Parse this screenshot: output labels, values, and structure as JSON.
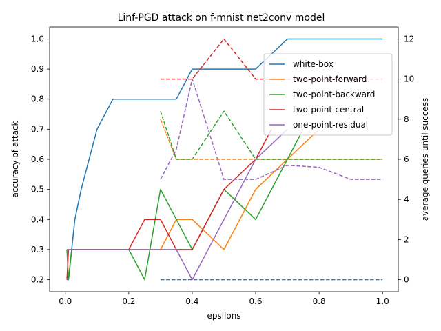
{
  "chart_data": {
    "type": "line",
    "title": "Linf-PGD attack on f-mnist net2conv model",
    "xlabel": "epsilons",
    "ylabel": "accuracy of attack",
    "ylabel_right": "average queries until success",
    "xlim": [
      -0.0495,
      1.0495
    ],
    "ylim": [
      0.16,
      1.04
    ],
    "ylim_right": [
      -0.6,
      12.6
    ],
    "x_ticks": [
      0.0,
      0.2,
      0.4,
      0.6,
      0.8,
      1.0
    ],
    "x_tick_labels": [
      "0.0",
      "0.2",
      "0.4",
      "0.6",
      "0.8",
      "1.0"
    ],
    "y_ticks": [
      0.2,
      0.3,
      0.4,
      0.5,
      0.6,
      0.7,
      0.8,
      0.9,
      1.0
    ],
    "y_tick_labels": [
      "0.2",
      "0.3",
      "0.4",
      "0.5",
      "0.6",
      "0.7",
      "0.8",
      "0.9",
      "1.0"
    ],
    "y_right_ticks": [
      0,
      2,
      4,
      6,
      8,
      10,
      12
    ],
    "y_right_tick_labels": [
      "0",
      "2",
      "4",
      "6",
      "8",
      "10",
      "12"
    ],
    "grid": false,
    "legend_position": "upper-right",
    "series": [
      {
        "name": "white-box",
        "color": "#1f77b4",
        "axis": "left",
        "style": "solid",
        "x": [
          0.005,
          0.01,
          0.02,
          0.03,
          0.05,
          0.1,
          0.15,
          0.2,
          0.25,
          0.3,
          0.35,
          0.4,
          0.5,
          0.6,
          0.7,
          0.8,
          0.9,
          1.0
        ],
        "y": [
          0.2,
          0.2,
          0.3,
          0.4,
          0.5,
          0.7,
          0.8,
          0.8,
          0.8,
          0.8,
          0.8,
          0.9,
          0.9,
          0.9,
          1.0,
          1.0,
          1.0,
          1.0
        ]
      },
      {
        "name": "two-point-forward",
        "color": "#ff7f0e",
        "axis": "left",
        "style": "solid",
        "x": [
          0.005,
          0.01,
          0.2,
          0.3,
          0.35,
          0.4,
          0.5,
          0.6,
          0.7,
          0.8
        ],
        "y": [
          0.3,
          0.3,
          0.3,
          0.3,
          0.4,
          0.4,
          0.3,
          0.5,
          0.6,
          0.7
        ]
      },
      {
        "name": "two-point-backward",
        "color": "#2ca02c",
        "axis": "left",
        "style": "solid",
        "x": [
          0.005,
          0.01,
          0.02,
          0.2,
          0.25,
          0.3,
          0.4,
          0.5,
          0.6,
          0.7,
          0.75
        ],
        "y": [
          0.3,
          0.2,
          0.3,
          0.3,
          0.2,
          0.5,
          0.3,
          0.5,
          0.4,
          0.6,
          0.7
        ]
      },
      {
        "name": "two-point-central",
        "color": "#d62728",
        "axis": "left",
        "style": "solid",
        "x": [
          0.005,
          0.01,
          0.02,
          0.2,
          0.25,
          0.3,
          0.35,
          0.4,
          0.5,
          0.6,
          0.65
        ],
        "y": [
          0.2,
          0.3,
          0.3,
          0.3,
          0.4,
          0.4,
          0.3,
          0.3,
          0.5,
          0.6,
          0.7
        ]
      },
      {
        "name": "one-point-residual",
        "color": "#9467bd",
        "axis": "left",
        "style": "solid",
        "x": [
          0.005,
          0.01,
          0.2,
          0.3,
          0.35,
          0.4,
          0.5,
          0.6,
          0.7
        ],
        "y": [
          0.3,
          0.3,
          0.3,
          0.3,
          0.3,
          0.2,
          0.4,
          0.6,
          0.7
        ]
      },
      {
        "name": "",
        "color": "#1f77b4",
        "axis": "right",
        "style": "dashed",
        "x": [
          0.3,
          0.4,
          0.5,
          0.6,
          0.7,
          0.8,
          0.9,
          1.0
        ],
        "y": [
          0,
          0,
          0,
          0,
          0,
          0,
          0,
          0
        ]
      },
      {
        "name": "",
        "color": "#ff7f0e",
        "axis": "right",
        "style": "dashed",
        "x": [
          0.3,
          0.35,
          0.4,
          0.5,
          0.6,
          0.7,
          0.8,
          0.9,
          1.0
        ],
        "y": [
          8,
          6,
          6,
          6,
          6,
          6,
          6,
          6,
          6
        ]
      },
      {
        "name": "",
        "color": "#2ca02c",
        "axis": "right",
        "style": "dashed",
        "x": [
          0.3,
          0.35,
          0.4,
          0.5,
          0.6,
          0.7,
          0.8,
          0.9,
          1.0
        ],
        "y": [
          8.4,
          6,
          6,
          8.4,
          6,
          6,
          6,
          6,
          6
        ]
      },
      {
        "name": "",
        "color": "#d62728",
        "axis": "right",
        "style": "dashed",
        "x": [
          0.3,
          0.4,
          0.5,
          0.6,
          0.7,
          0.8,
          0.9,
          1.0
        ],
        "y": [
          10,
          10,
          12,
          10,
          10,
          10,
          10,
          10
        ]
      },
      {
        "name": "",
        "color": "#9467bd",
        "axis": "right",
        "style": "dashed",
        "x": [
          0.3,
          0.35,
          0.4,
          0.5,
          0.6,
          0.7,
          0.8,
          0.9,
          1.0
        ],
        "y": [
          5,
          6.5,
          10,
          5,
          5,
          5.7,
          5.6,
          5,
          5
        ]
      }
    ]
  }
}
